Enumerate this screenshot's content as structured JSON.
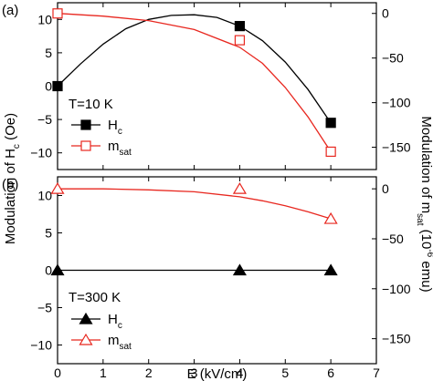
{
  "chart_data": [
    {
      "panel_label": "(a)",
      "type": "line",
      "annotation": "T=10 K",
      "xlabel": "E (kV/cm)",
      "ylabel_left": "Modulation of H",
      "ylabel_left_sub": "c",
      "ylabel_left_unit": " (Oe)",
      "ylabel_right": "Modulation of m",
      "ylabel_right_sub": "sat",
      "ylabel_right_unit_pre": " (10",
      "ylabel_right_unit_sup": "-6",
      "ylabel_right_unit_post": " emu)",
      "xlim": [
        0,
        7
      ],
      "xticks": [
        0,
        1,
        2,
        3,
        4,
        5,
        6,
        7
      ],
      "ylim_left": [
        -12.5,
        12.5
      ],
      "yticks_left": [
        -10,
        -5,
        0,
        5,
        10
      ],
      "ylim_right": [
        -175,
        12
      ],
      "yticks_right": [
        0,
        -50,
        -100,
        -150
      ],
      "series": [
        {
          "name": "H",
          "name_sub": "c",
          "axis": "left",
          "marker": "filled-square",
          "color": "#000000",
          "x": [
            0,
            4,
            6
          ],
          "y": [
            0,
            9,
            -5.5
          ],
          "curve_x": [
            0,
            0.5,
            1,
            1.5,
            2,
            2.5,
            3,
            3.5,
            4,
            4.5,
            5,
            5.5,
            6
          ],
          "curve_y": [
            0,
            3.3,
            6.3,
            8.6,
            10.0,
            10.6,
            10.7,
            10.3,
            9.0,
            6.8,
            3.6,
            -0.5,
            -5.5
          ]
        },
        {
          "name": "m",
          "name_sub": "sat",
          "axis": "right",
          "marker": "open-square",
          "color": "#e8271f",
          "x": [
            0,
            4,
            6
          ],
          "y": [
            0,
            -30,
            -155
          ],
          "curve_x": [
            0,
            1,
            2,
            3,
            4,
            4.5,
            5,
            5.5,
            6
          ],
          "curve_y": [
            0,
            -3,
            -8,
            -18,
            -38,
            -56,
            -83,
            -116,
            -155
          ]
        }
      ]
    },
    {
      "panel_label": "(b)",
      "type": "line",
      "annotation": "T=300 K",
      "xlim": [
        0,
        7
      ],
      "xticks": [
        0,
        1,
        2,
        3,
        4,
        5,
        6,
        7
      ],
      "ylim_left": [
        -12.5,
        12.5
      ],
      "yticks_left": [
        -10,
        -5,
        0,
        5,
        10
      ],
      "ylim_right": [
        -175,
        12
      ],
      "yticks_right": [
        0,
        -50,
        -100,
        -150
      ],
      "series": [
        {
          "name": "H",
          "name_sub": "c",
          "axis": "left",
          "marker": "filled-triangle",
          "color": "#000000",
          "x": [
            0,
            4,
            6
          ],
          "y": [
            0,
            0,
            0
          ],
          "curve_x": [
            0,
            6
          ],
          "curve_y": [
            0,
            0
          ]
        },
        {
          "name": "m",
          "name_sub": "sat",
          "axis": "right",
          "marker": "open-triangle",
          "color": "#e8271f",
          "x": [
            0,
            4,
            6
          ],
          "y": [
            0,
            0,
            -30
          ],
          "curve_x": [
            0,
            1,
            2,
            3,
            4,
            4.5,
            5,
            5.5,
            6
          ],
          "curve_y": [
            0,
            0,
            -1,
            -3,
            -8,
            -12,
            -17,
            -23,
            -30
          ]
        }
      ]
    }
  ]
}
